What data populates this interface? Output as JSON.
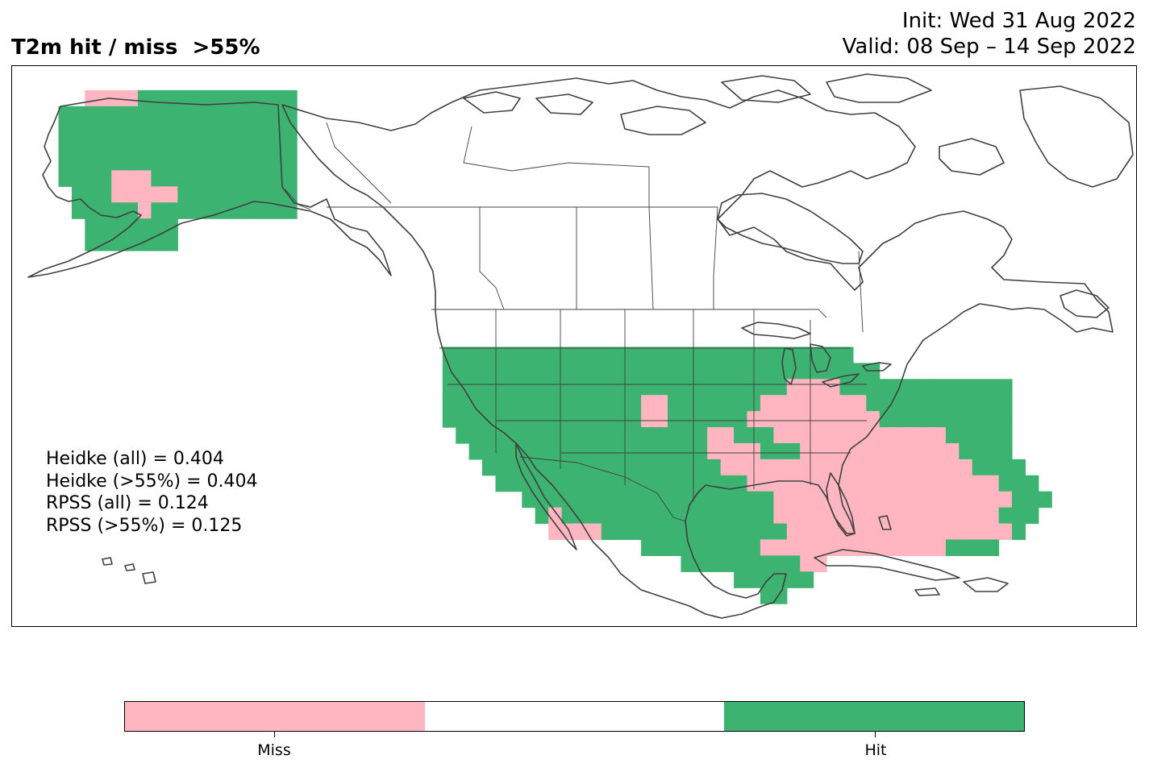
{
  "header": {
    "title": "T2m hit / miss  >55%",
    "init": "Init: Wed 31 Aug 2022",
    "valid": "Valid: 08 Sep – 14 Sep 2022"
  },
  "stats": {
    "heidke_all": "Heidke (all) = 0.404",
    "heidke_55": "Heidke (>55%) = 0.404",
    "rpss_all": "RPSS (all) = 0.124",
    "rpss_55": "RPSS (>55%) = 0.125"
  },
  "colorbar": {
    "colors": [
      "#ffb6c1",
      "#ffffff",
      "#3cb371"
    ],
    "miss_label": "Miss",
    "hit_label": "Hit"
  },
  "map": {
    "projection": "PlateCarree",
    "extent_lon": [
      -180,
      -10
    ],
    "extent_lat": [
      5,
      75
    ],
    "grid_res_deg": 2.0,
    "colors": {
      "hit": "#3cb371",
      "miss": "#ffb6c1",
      "coast": "#404040"
    },
    "grid_x0": -174,
    "grid_y0": 71,
    "grid_rows": [
      "   MMMMHHHHHHHHHHHH                                                                   ",
      " HHHHHHHHHHHHHHHHHH                                                                   ",
      " HHHHHHHHHHHHHHHHHH                                                                   ",
      " HHHHHHHHHHHHHHHHHH                                                                   ",
      " HHHHHHHHHHHHHHHHHH                                                                   ",
      " HHHHMMMHHHHHHHHHHH                                                                   ",
      "  HHHMMMMMHHHHHHHHH                                                                   ",
      "  HHHHHMHHHHHHHHHHH                                                                   ",
      "   HHHHHHH                                                                            ",
      "   HHHHHHH                                                                            ",
      "                                                                                      ",
      "                                                                                      ",
      "                                                                                      ",
      "                                                                                      ",
      "                                                                                      ",
      "                                                                                      ",
      "                              HHHHHHHHHHHHHHHHHHHHHHHHHHHHHHH                         ",
      "                              HHHHHHHHHHHHHHHHHHHHHHHHHHHHHHHHH                       ",
      "                              HHHHHHHHHHHHHHHHHHHHHHHHHHMMMMHHHHHHHHHHHHH             ",
      "                              HHHHHHHHHHHHHHHMMHHHHHHHMMMMMMMMHHHHHHHHHHH             ",
      "                              HHHHHHHHHHHHHHHMMHHHHHHMMMMMMMMMMHHHHHHHHHH             ",
      "                               HHHHHHHHHHHHHHHHHHHMMHHHMMMMMMMMMMMMMHHHHH             ",
      "                                HHHHHHHHHHHHHHHHHHMMMMHHHMMMMMMMMMMMMHHHH             ",
      "                                 HHHHHHHHHHHHHHHHHHMMMMMMMMMMMMMMMMMMMHHHH            ",
      "                                  HHHHHHHHHHHHHHHHHHHMMMMMMMMMMMMMMMMMMMHHH           ",
      "                                    HHHHHHHHHHHHHHHHHHHMMMMMMMMMMMMMMMMMMHHH          ",
      "                                     HMHHHHHHHHHHHHHHHHMMMMMMMMMMMMMMMMMHHH           ",
      "                                      MMMMHHHHHHHHHHHHHHMMMMMMMMMMMMMMMMMH            ",
      "                                             HHHHHHHHHMMMMMMMMMMMMMMHHHH              ",
      "                                                HHHHHHHHHMM                           ",
      "                                                    HHHHHH                            ",
      "                                                      HH                              "
    ]
  }
}
